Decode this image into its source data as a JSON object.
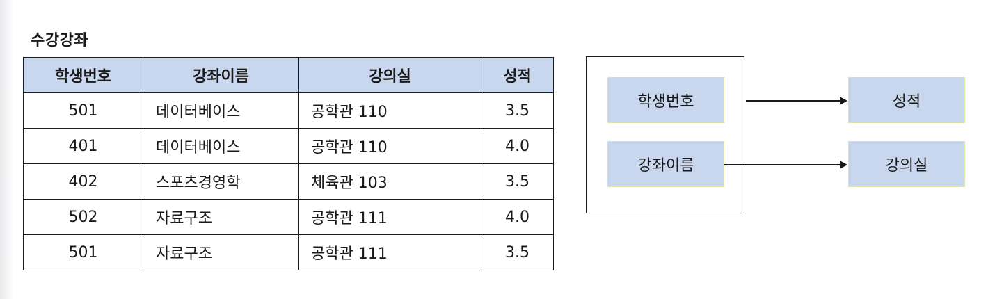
{
  "title": "수강강좌",
  "table": {
    "headers": [
      "학생번호",
      "강좌이름",
      "강의실",
      "성적"
    ],
    "rows": [
      [
        "501",
        "데이터베이스",
        "공학관 110",
        "3.5"
      ],
      [
        "401",
        "데이터베이스",
        "공학관 110",
        "4.0"
      ],
      [
        "402",
        "스포츠경영학",
        "체육관 103",
        "3.5"
      ],
      [
        "502",
        "자료구조",
        "공학관 111",
        "4.0"
      ],
      [
        "501",
        "자료구조",
        "공학관 111",
        "3.5"
      ]
    ]
  },
  "diagram": {
    "sources": [
      "학생번호",
      "강좌이름"
    ],
    "targets": [
      "성적",
      "강의실"
    ]
  },
  "colors": {
    "header_fill": "#c9d7ee",
    "node_fill": "#c9d7ee",
    "node_border": "#d8e3a8",
    "line": "#1a1a1a"
  }
}
